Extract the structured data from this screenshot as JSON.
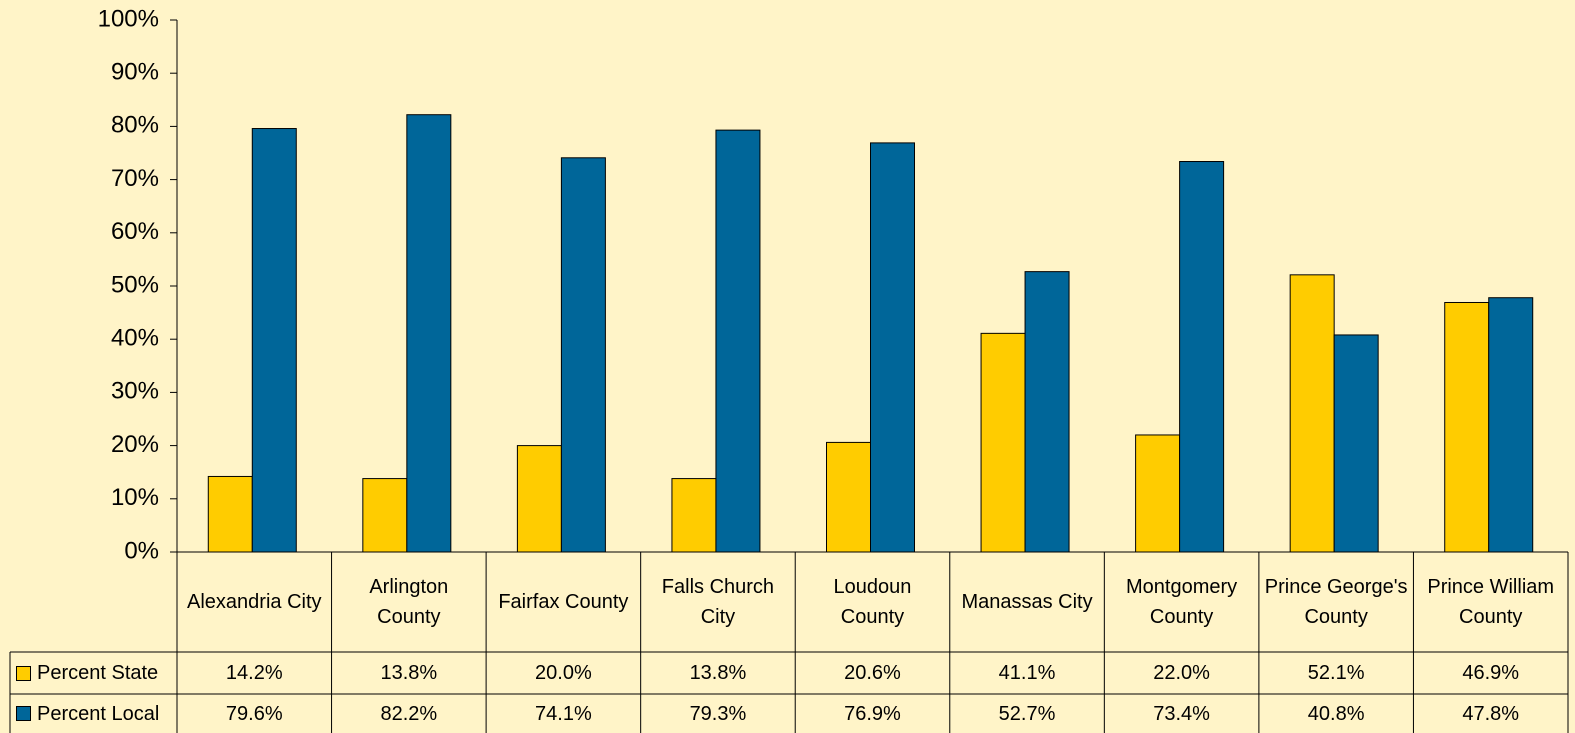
{
  "chart_data": {
    "type": "bar",
    "categories": [
      "Alexandria City",
      "Arlington County",
      "Fairfax County",
      "Falls Church City",
      "Loudoun County",
      "Manassas City",
      "Montgomery County",
      "Prince George's County",
      "Prince William County"
    ],
    "series": [
      {
        "name": "Percent State",
        "color": "#ffcc00",
        "values": [
          14.2,
          13.8,
          20.0,
          13.8,
          20.6,
          41.1,
          22.0,
          52.1,
          46.9
        ],
        "value_labels": [
          "14.2%",
          "13.8%",
          "20.0%",
          "13.8%",
          "20.6%",
          "41.1%",
          "22.0%",
          "52.1%",
          "46.9%"
        ]
      },
      {
        "name": "Percent Local",
        "color": "#006699",
        "values": [
          79.6,
          82.2,
          74.1,
          79.3,
          76.9,
          52.7,
          73.4,
          40.8,
          47.8
        ],
        "value_labels": [
          "79.6%",
          "82.2%",
          "74.1%",
          "79.3%",
          "76.9%",
          "52.7%",
          "73.4%",
          "40.8%",
          "47.8%"
        ]
      }
    ],
    "ylim": [
      0,
      100
    ],
    "yticks": [
      {
        "value": 0,
        "label": "0%"
      },
      {
        "value": 10,
        "label": "10%"
      },
      {
        "value": 20,
        "label": "20%"
      },
      {
        "value": 30,
        "label": "30%"
      },
      {
        "value": 40,
        "label": "40%"
      },
      {
        "value": 50,
        "label": "50%"
      },
      {
        "value": 60,
        "label": "60%"
      },
      {
        "value": 70,
        "label": "70%"
      },
      {
        "value": 80,
        "label": "80%"
      },
      {
        "value": 90,
        "label": "90%"
      },
      {
        "value": 100,
        "label": "100%"
      }
    ],
    "grid": false,
    "legend": "bottom"
  }
}
